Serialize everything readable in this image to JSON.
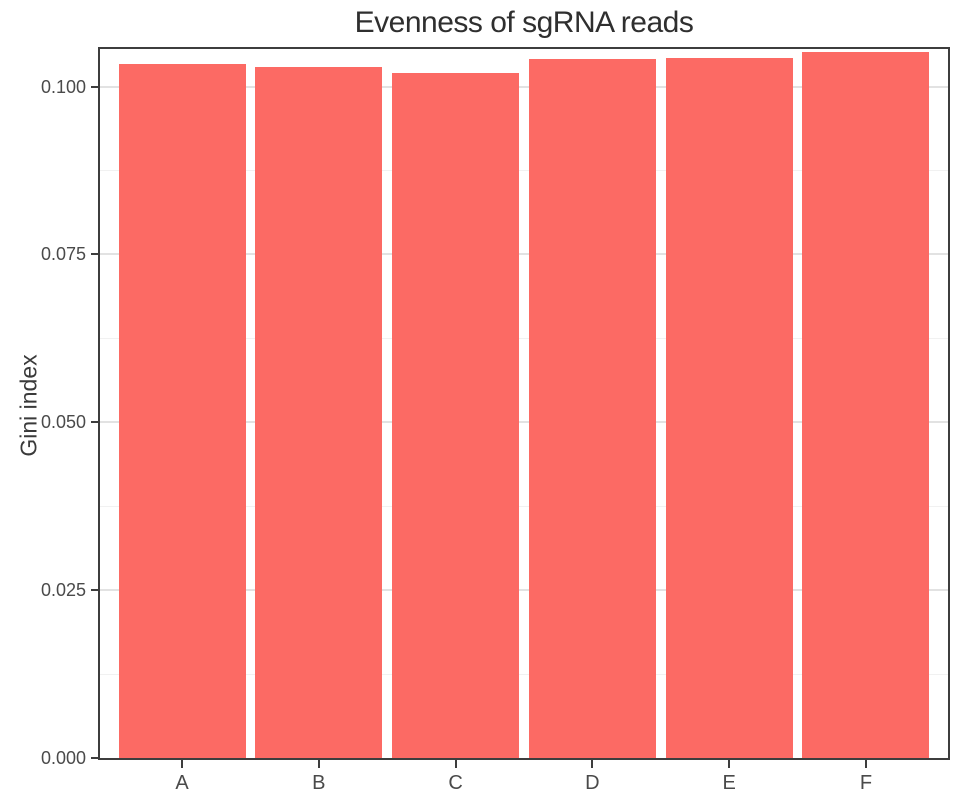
{
  "chart_data": {
    "type": "bar",
    "title": "Evenness of sgRNA reads",
    "xlabel": "",
    "ylabel": "Gini index",
    "categories": [
      "A",
      "B",
      "C",
      "D",
      "E",
      "F"
    ],
    "values": [
      0.1033,
      0.1029,
      0.102,
      0.1041,
      0.1043,
      0.1052
    ],
    "ylim": [
      0,
      0.1056
    ],
    "yticks": [
      0.0,
      0.025,
      0.05,
      0.075,
      0.1
    ],
    "ytick_labels": [
      "0.000",
      "0.025",
      "0.050",
      "0.075",
      "0.100"
    ],
    "minor_gridlines": [
      0.0125,
      0.0375,
      0.0625,
      0.0875
    ],
    "grid": true,
    "legend": false,
    "bar_color": "#fc6a64",
    "spine_color": "#3d3d3d",
    "major_grid_color": "#e2e2e2",
    "minor_grid_color": "#f1f1f1",
    "title_color": "#2f2f2f",
    "tick_text_color": "#4a4a4a",
    "background": "#ffffff"
  }
}
